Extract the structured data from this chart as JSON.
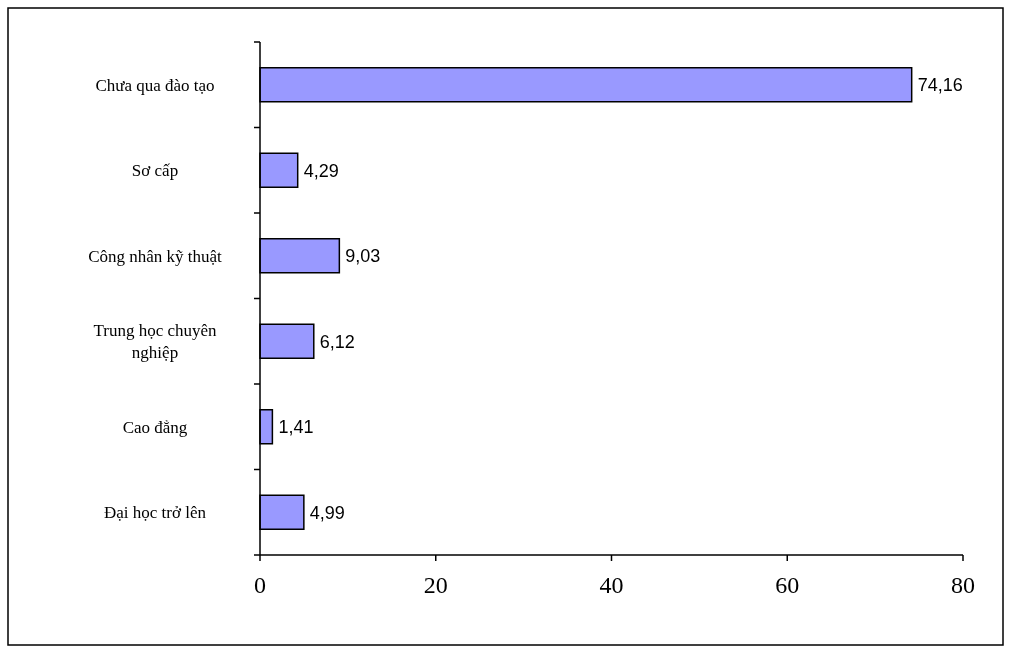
{
  "chart_data": {
    "type": "bar",
    "orientation": "horizontal",
    "categories": [
      "Chưa qua đào tạo",
      "Sơ cấp",
      "Công nhân kỹ thuật",
      "Trung học chuyên nghiệp",
      "Cao đẳng",
      "Đại học trở lên"
    ],
    "values": [
      74.16,
      4.29,
      9.03,
      6.12,
      1.41,
      4.99
    ],
    "value_labels": [
      "74,16",
      "4,29",
      "9,03",
      "6,12",
      "1,41",
      "4,99"
    ],
    "color": "#9999ff",
    "xlim": [
      0,
      80
    ],
    "xticks": [
      0,
      20,
      40,
      60,
      80
    ],
    "grid": false
  }
}
